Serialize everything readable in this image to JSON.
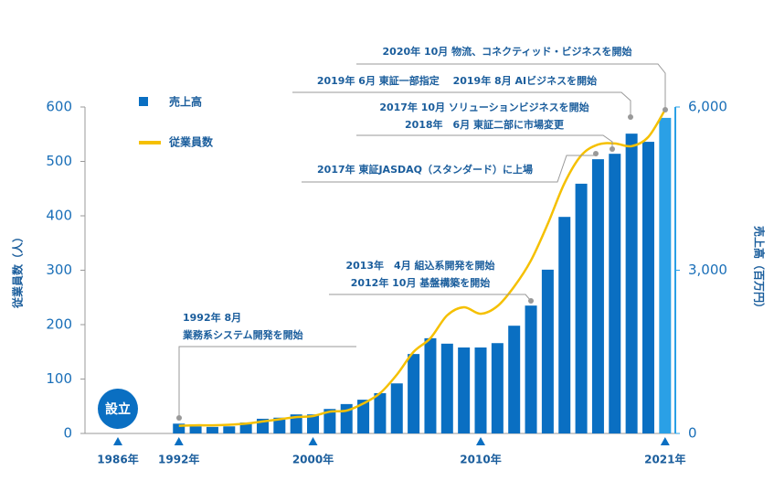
{
  "chart_data": {
    "type": "bar-line",
    "ylabel": "従業員数（人）",
    "y2label": "売上高（百万円）",
    "founded": {
      "label": "設立",
      "year": "1986年"
    },
    "x": [
      1992,
      1993,
      1994,
      1995,
      1996,
      1997,
      1998,
      1999,
      2000,
      2001,
      2002,
      2003,
      2004,
      2005,
      2006,
      2007,
      2008,
      2009,
      2010,
      2011,
      2012,
      2013,
      2014,
      2015,
      2016,
      2017,
      2018,
      2019,
      2020,
      2021
    ],
    "xlim": [
      1986.4,
      2021.5
    ],
    "xticks": [
      {
        "value": 1992,
        "label": "1992年"
      },
      {
        "value": 2000,
        "label": "2000年"
      },
      {
        "value": 2010,
        "label": "2010年"
      },
      {
        "value": 2021,
        "label": "2021年"
      }
    ],
    "ylim": [
      0,
      600
    ],
    "yticks": [
      0,
      100,
      200,
      300,
      400,
      500,
      600
    ],
    "y2lim": [
      0,
      6000
    ],
    "y2ticks": [
      0,
      {
        "value": 3000,
        "label": "3,000"
      },
      {
        "value": 6000,
        "label": "6,000"
      }
    ],
    "series": [
      {
        "name": "売上高",
        "type": "bar",
        "axis": "y2",
        "color": "#0a6fc2",
        "highlight_color": "#2aa0e6",
        "values": [
          180,
          130,
          120,
          130,
          200,
          270,
          290,
          350,
          350,
          450,
          540,
          620,
          740,
          920,
          1460,
          1750,
          1650,
          1580,
          1580,
          1660,
          1980,
          2350,
          3010,
          3980,
          4590,
          5040,
          5140,
          5510,
          5360,
          5800
        ]
      },
      {
        "name": "従業員数",
        "type": "line",
        "color": "#f5c000",
        "values": [
          14,
          15,
          15,
          16,
          18,
          22,
          26,
          30,
          32,
          40,
          42,
          55,
          74,
          108,
          150,
          175,
          217,
          232,
          220,
          234,
          270,
          318,
          385,
          460,
          511,
          531,
          533,
          528,
          545,
          595
        ]
      }
    ],
    "annotations": [
      {
        "lines": [
          "2020年 10月 物流、コネクティッド・ビジネスを開始"
        ]
      },
      {
        "lines": [
          "2019年 6月 東証一部指定　 2019年 8月 AIビジネスを開始"
        ]
      },
      {
        "lines": [
          "2017年 10月 ソリューションビジネスを開始",
          "2018年　6月 東証二部に市場変更"
        ]
      },
      {
        "lines": [
          "2017年 東証JASDAQ（スタンダード）に上場"
        ]
      },
      {
        "lines": [
          "2013年　4月 組込系開発を開始",
          "2012年 10月 基盤構築を開始"
        ]
      },
      {
        "lines": [
          "1992年 8月",
          "業務系システム開発を開始"
        ]
      }
    ]
  }
}
